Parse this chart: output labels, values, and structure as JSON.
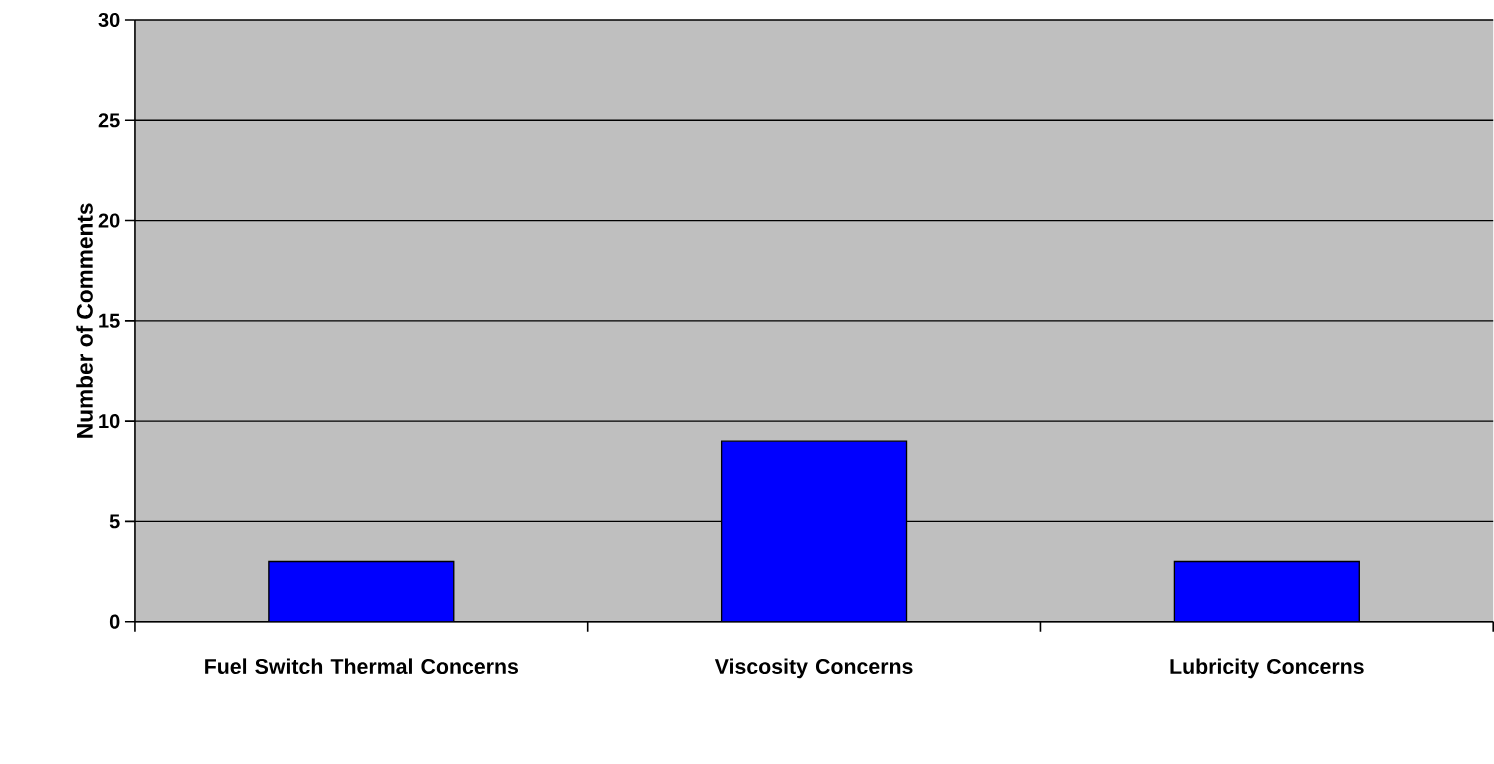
{
  "chart_data": {
    "type": "bar",
    "ylabel": "Number of Comments",
    "categories": [
      "Fuel Switch Thermal Concerns",
      "Viscosity Concerns",
      "Lubricity Concerns"
    ],
    "values": [
      3,
      9,
      3
    ],
    "color": "#0000ff",
    "ylim": [
      0,
      30
    ],
    "yticks": [
      0,
      5,
      10,
      15,
      20,
      25,
      30
    ],
    "grid": "y"
  }
}
